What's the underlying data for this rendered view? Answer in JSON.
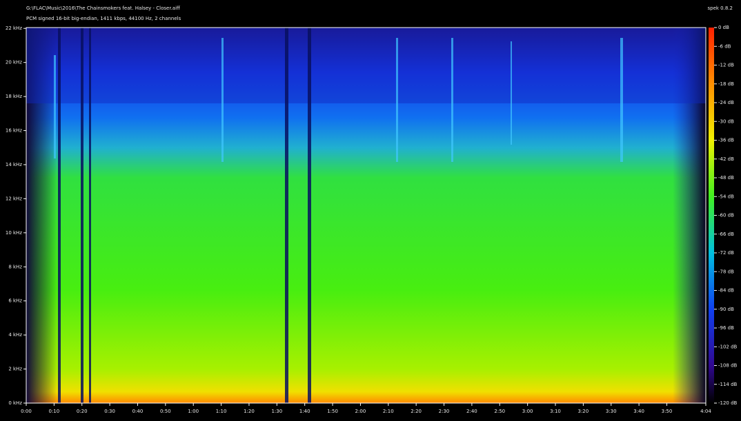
{
  "chart_data": {
    "type": "spectrogram",
    "title": "G:\\FLAC\\Music\\2016\\The Chainsmokers feat. Halsey - Closer.aiff",
    "subtitle": "PCM signed 16-bit big-endian, 1411 kbps, 44100 Hz, 2 channels",
    "app_label": "spek 0.8.2",
    "xlim": [
      0,
      244
    ],
    "xticks": [
      {
        "value": 0,
        "label": "0:00"
      },
      {
        "value": 10,
        "label": "0:10"
      },
      {
        "value": 20,
        "label": "0:20"
      },
      {
        "value": 30,
        "label": "0:30"
      },
      {
        "value": 40,
        "label": "0:40"
      },
      {
        "value": 50,
        "label": "0:50"
      },
      {
        "value": 60,
        "label": "1:00"
      },
      {
        "value": 70,
        "label": "1:10"
      },
      {
        "value": 80,
        "label": "1:20"
      },
      {
        "value": 90,
        "label": "1:30"
      },
      {
        "value": 100,
        "label": "1:40"
      },
      {
        "value": 110,
        "label": "1:50"
      },
      {
        "value": 120,
        "label": "2:00"
      },
      {
        "value": 130,
        "label": "2:10"
      },
      {
        "value": 140,
        "label": "2:20"
      },
      {
        "value": 150,
        "label": "2:30"
      },
      {
        "value": 160,
        "label": "2:40"
      },
      {
        "value": 170,
        "label": "2:50"
      },
      {
        "value": 180,
        "label": "3:00"
      },
      {
        "value": 190,
        "label": "3:10"
      },
      {
        "value": 200,
        "label": "3:20"
      },
      {
        "value": 210,
        "label": "3:30"
      },
      {
        "value": 220,
        "label": "3:40"
      },
      {
        "value": 230,
        "label": "3:50"
      },
      {
        "value": 244,
        "label": "4:04"
      }
    ],
    "ylim": [
      0,
      22.05
    ],
    "yticks": [
      {
        "value": 0,
        "label": "0 kHz"
      },
      {
        "value": 2,
        "label": "2 kHz"
      },
      {
        "value": 4,
        "label": "4 kHz"
      },
      {
        "value": 6,
        "label": "6 kHz"
      },
      {
        "value": 8,
        "label": "8 kHz"
      },
      {
        "value": 10,
        "label": "10 kHz"
      },
      {
        "value": 12,
        "label": "12 kHz"
      },
      {
        "value": 14,
        "label": "14 kHz"
      },
      {
        "value": 16,
        "label": "16 kHz"
      },
      {
        "value": 18,
        "label": "18 kHz"
      },
      {
        "value": 20,
        "label": "20 kHz"
      },
      {
        "value": 22,
        "label": "22 kHz"
      }
    ],
    "zlim": [
      -120,
      0
    ],
    "zticks": [
      {
        "value": 0,
        "label": "0 dB"
      },
      {
        "value": -6,
        "label": "-6 dB"
      },
      {
        "value": -12,
        "label": "-12 dB"
      },
      {
        "value": -18,
        "label": "-18 dB"
      },
      {
        "value": -24,
        "label": "-24 dB"
      },
      {
        "value": -30,
        "label": "-30 dB"
      },
      {
        "value": -36,
        "label": "-36 dB"
      },
      {
        "value": -42,
        "label": "-42 dB"
      },
      {
        "value": -48,
        "label": "-48 dB"
      },
      {
        "value": -54,
        "label": "-54 dB"
      },
      {
        "value": -60,
        "label": "-60 dB"
      },
      {
        "value": -66,
        "label": "-66 dB"
      },
      {
        "value": -72,
        "label": "-72 dB"
      },
      {
        "value": -78,
        "label": "-78 dB"
      },
      {
        "value": -84,
        "label": "-84 dB"
      },
      {
        "value": -90,
        "label": "-90 dB"
      },
      {
        "value": -96,
        "label": "-96 dB"
      },
      {
        "value": -102,
        "label": "-102 dB"
      },
      {
        "value": -108,
        "label": "-108 dB"
      },
      {
        "value": -114,
        "label": "-114 dB"
      },
      {
        "value": -120,
        "label": "-120 dB"
      }
    ]
  }
}
